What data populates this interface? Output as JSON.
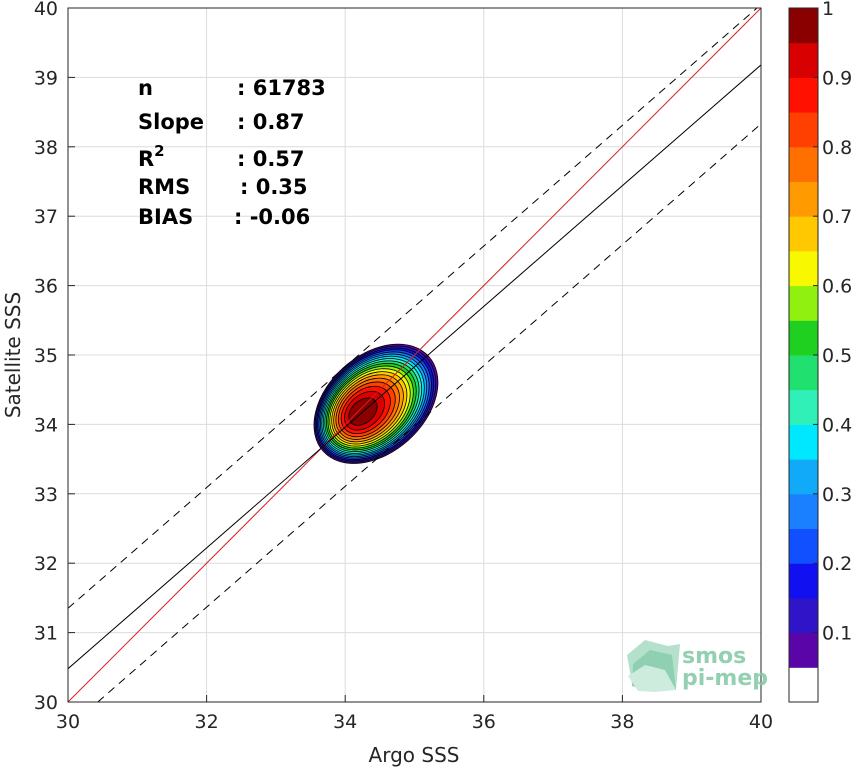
{
  "chart_data": {
    "type": "contour",
    "xlabel": "Argo SSS",
    "ylabel": "Satellite SSS",
    "xlim": [
      30,
      40
    ],
    "ylim": [
      30,
      40
    ],
    "xticks": [
      30,
      32,
      34,
      36,
      38,
      40
    ],
    "yticks": [
      30,
      31,
      32,
      33,
      34,
      35,
      36,
      37,
      38,
      39,
      40
    ],
    "grid": true,
    "stats": [
      {
        "key": "n",
        "sep": ": 61783"
      },
      {
        "key": "Slope",
        "sep": ": 0.87"
      },
      {
        "key": "R",
        "sup": "2",
        "sep": ": 0.57"
      },
      {
        "key": "RMS",
        "sep": ": 0.35"
      },
      {
        "key": "BIAS",
        "sep": ": -0.06"
      }
    ],
    "n": 61783,
    "slope": 0.87,
    "r2": 0.57,
    "rms": 0.35,
    "bias": -0.06,
    "density_peak": {
      "x": 34.2,
      "y": 34.15
    },
    "contour_levels": [
      0.05,
      0.1,
      0.15,
      0.2,
      0.25,
      0.3,
      0.35,
      0.4,
      0.45,
      0.5,
      0.55,
      0.6,
      0.65,
      0.7,
      0.75,
      0.8,
      0.85,
      0.9,
      0.95
    ],
    "lines": [
      {
        "name": "identity",
        "color": "#d62020",
        "dash": false,
        "points": [
          [
            30,
            30
          ],
          [
            40,
            40
          ]
        ]
      },
      {
        "name": "fit",
        "color": "#000000",
        "dash": false,
        "points": [
          [
            30,
            30.48
          ],
          [
            40,
            39.18
          ]
        ]
      },
      {
        "name": "fit-upper",
        "color": "#000000",
        "dash": true,
        "points": [
          [
            30,
            31.35
          ],
          [
            40,
            40.05
          ]
        ]
      },
      {
        "name": "fit-lower",
        "color": "#000000",
        "dash": true,
        "points": [
          [
            30.43,
            30
          ],
          [
            40,
            38.33
          ]
        ]
      }
    ],
    "colorbar": {
      "ticks": [
        0.1,
        0.2,
        0.3,
        0.4,
        0.5,
        0.6,
        0.7,
        0.8,
        0.9,
        1
      ],
      "tick_labels": [
        "0.1",
        "0.2",
        "0.3",
        "0.4",
        "0.5",
        "0.6",
        "0.7",
        "0.8",
        "0.9",
        "1"
      ],
      "range": [
        0,
        1
      ],
      "colors": [
        "#ffffff",
        "#5a05a8",
        "#3015c8",
        "#1010f0",
        "#1050ff",
        "#1a80ff",
        "#10aaf8",
        "#00e8ff",
        "#30f0b8",
        "#20e070",
        "#20d020",
        "#90f010",
        "#f8f800",
        "#ffc800",
        "#ff9a00",
        "#ff7000",
        "#ff4000",
        "#ff1000",
        "#d80000",
        "#8a0000"
      ]
    }
  },
  "logo": {
    "line1": "smos",
    "line2": "pi-mep"
  }
}
